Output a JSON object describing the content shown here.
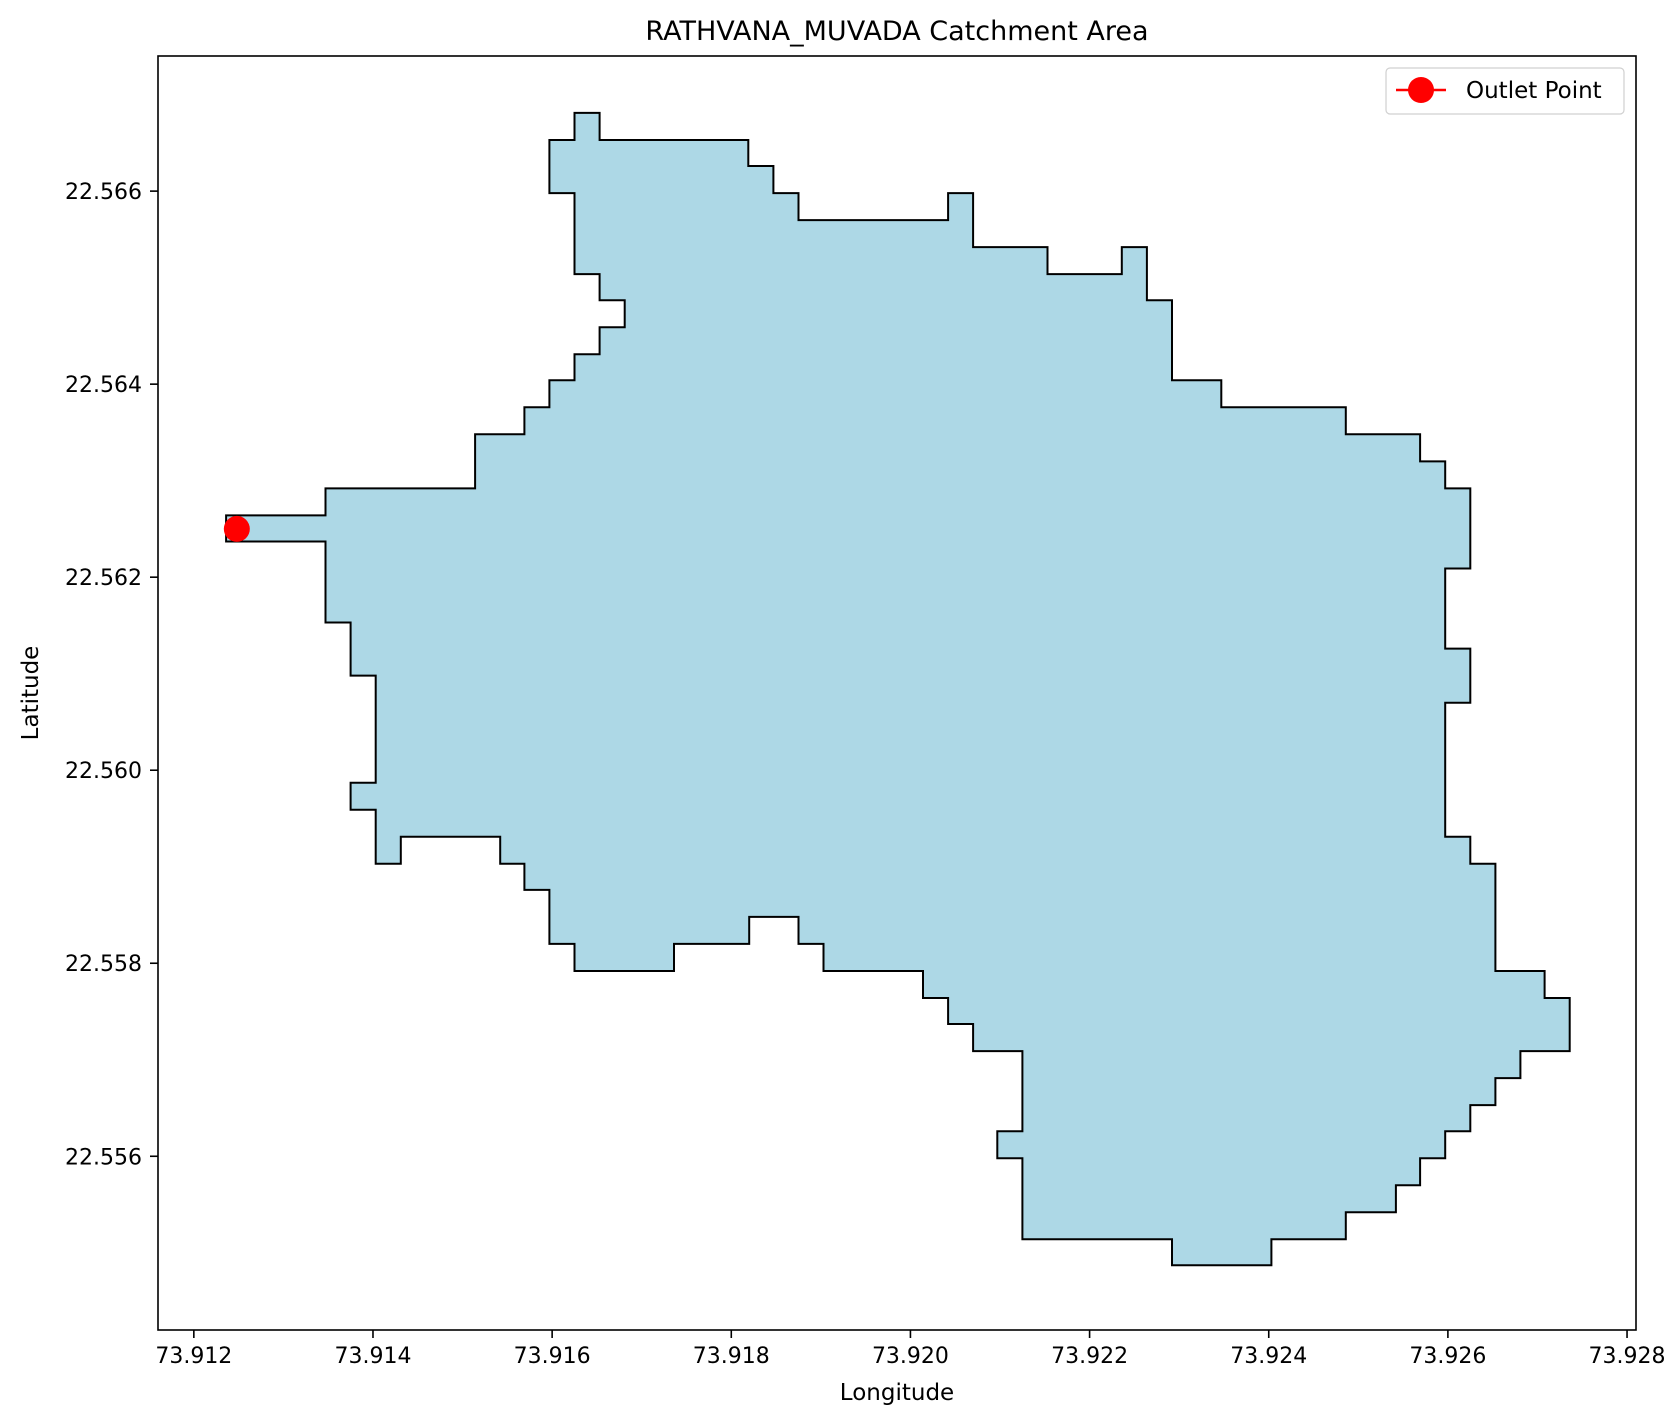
{
  "chart_data": {
    "type": "map",
    "title": "RATHVANA_MUVADA Catchment Area",
    "xlabel": "Longitude",
    "ylabel": "Latitude",
    "xlim": [
      73.9116,
      73.9281
    ],
    "ylim": [
      22.5542,
      22.5674
    ],
    "xticks": [
      "73.912",
      "73.914",
      "73.916",
      "73.918",
      "73.920",
      "73.922",
      "73.924",
      "73.926",
      "73.928"
    ],
    "yticks": [
      "22.556",
      "22.558",
      "22.560",
      "22.562",
      "22.564",
      "22.566"
    ],
    "polygon_fill": "#add8e6",
    "polygon_edge": "#000000",
    "catchment_boundary": [
      [
        73.91236,
        22.56264
      ],
      [
        73.91347,
        22.56264
      ],
      [
        73.91347,
        22.56292
      ],
      [
        73.91514,
        22.56292
      ],
      [
        73.91514,
        22.56348
      ],
      [
        73.91569,
        22.56348
      ],
      [
        73.91569,
        22.56376
      ],
      [
        73.91597,
        22.56376
      ],
      [
        73.91597,
        22.56404
      ],
      [
        73.91625,
        22.56404
      ],
      [
        73.91625,
        22.56431
      ],
      [
        73.91653,
        22.56431
      ],
      [
        73.91653,
        22.56459
      ],
      [
        73.91681,
        22.56459
      ],
      [
        73.91681,
        22.56487
      ],
      [
        73.91653,
        22.56487
      ],
      [
        73.91653,
        22.56514
      ],
      [
        73.91625,
        22.56514
      ],
      [
        73.91625,
        22.56598
      ],
      [
        73.91597,
        22.56598
      ],
      [
        73.91597,
        22.56653
      ],
      [
        73.91625,
        22.56653
      ],
      [
        73.91625,
        22.56681
      ],
      [
        73.91653,
        22.56681
      ],
      [
        73.91653,
        22.56653
      ],
      [
        73.91819,
        22.56653
      ],
      [
        73.91819,
        22.56626
      ],
      [
        73.91847,
        22.56626
      ],
      [
        73.91847,
        22.56598
      ],
      [
        73.91875,
        22.56598
      ],
      [
        73.91875,
        22.5657
      ],
      [
        73.92042,
        22.5657
      ],
      [
        73.92042,
        22.56598
      ],
      [
        73.9207,
        22.56598
      ],
      [
        73.9207,
        22.56542
      ],
      [
        73.92153,
        22.56542
      ],
      [
        73.92153,
        22.56514
      ],
      [
        73.92236,
        22.56514
      ],
      [
        73.92236,
        22.56542
      ],
      [
        73.92264,
        22.56542
      ],
      [
        73.92264,
        22.56487
      ],
      [
        73.92292,
        22.56487
      ],
      [
        73.92292,
        22.56404
      ],
      [
        73.92347,
        22.56404
      ],
      [
        73.92347,
        22.56376
      ],
      [
        73.92486,
        22.56376
      ],
      [
        73.92486,
        22.56348
      ],
      [
        73.92569,
        22.56348
      ],
      [
        73.92569,
        22.5632
      ],
      [
        73.92597,
        22.5632
      ],
      [
        73.92597,
        22.56292
      ],
      [
        73.92625,
        22.56292
      ],
      [
        73.92625,
        22.56209
      ],
      [
        73.92597,
        22.56209
      ],
      [
        73.92597,
        22.56126
      ],
      [
        73.92625,
        22.56126
      ],
      [
        73.92625,
        22.5607
      ],
      [
        73.92597,
        22.5607
      ],
      [
        73.92597,
        22.55931
      ],
      [
        73.92625,
        22.55931
      ],
      [
        73.92625,
        22.55903
      ],
      [
        73.92653,
        22.55903
      ],
      [
        73.92653,
        22.55792
      ],
      [
        73.92708,
        22.55792
      ],
      [
        73.92708,
        22.55764
      ],
      [
        73.92736,
        22.55764
      ],
      [
        73.92736,
        22.55709
      ],
      [
        73.92681,
        22.55709
      ],
      [
        73.92681,
        22.55681
      ],
      [
        73.92653,
        22.55681
      ],
      [
        73.92653,
        22.55653
      ],
      [
        73.92625,
        22.55653
      ],
      [
        73.92625,
        22.55626
      ],
      [
        73.92597,
        22.55626
      ],
      [
        73.92597,
        22.55598
      ],
      [
        73.92569,
        22.55598
      ],
      [
        73.92569,
        22.5557
      ],
      [
        73.92542,
        22.5557
      ],
      [
        73.92542,
        22.55542
      ],
      [
        73.92486,
        22.55542
      ],
      [
        73.92486,
        22.55514
      ],
      [
        73.92403,
        22.55514
      ],
      [
        73.92403,
        22.55487
      ],
      [
        73.92292,
        22.55487
      ],
      [
        73.92292,
        22.55514
      ],
      [
        73.92125,
        22.55514
      ],
      [
        73.92125,
        22.55598
      ],
      [
        73.92097,
        22.55598
      ],
      [
        73.92097,
        22.55626
      ],
      [
        73.92125,
        22.55626
      ],
      [
        73.92125,
        22.55709
      ],
      [
        73.9207,
        22.55709
      ],
      [
        73.9207,
        22.55737
      ],
      [
        73.92042,
        22.55737
      ],
      [
        73.92042,
        22.55764
      ],
      [
        73.92014,
        22.55764
      ],
      [
        73.92014,
        22.55792
      ],
      [
        73.91903,
        22.55792
      ],
      [
        73.91903,
        22.5582
      ],
      [
        73.91875,
        22.5582
      ],
      [
        73.91875,
        22.55848
      ],
      [
        73.9182,
        22.55848
      ],
      [
        73.9182,
        22.5582
      ],
      [
        73.91736,
        22.5582
      ],
      [
        73.91736,
        22.55792
      ],
      [
        73.91625,
        22.55792
      ],
      [
        73.91625,
        22.5582
      ],
      [
        73.91597,
        22.5582
      ],
      [
        73.91597,
        22.55876
      ],
      [
        73.91569,
        22.55876
      ],
      [
        73.91569,
        22.55903
      ],
      [
        73.91542,
        22.55903
      ],
      [
        73.91542,
        22.55931
      ],
      [
        73.91431,
        22.55931
      ],
      [
        73.91431,
        22.55903
      ],
      [
        73.91403,
        22.55903
      ],
      [
        73.91403,
        22.55959
      ],
      [
        73.91375,
        22.55959
      ],
      [
        73.91375,
        22.55987
      ],
      [
        73.91403,
        22.55987
      ],
      [
        73.91403,
        22.56098
      ],
      [
        73.91375,
        22.56098
      ],
      [
        73.91375,
        22.56153
      ],
      [
        73.91347,
        22.56153
      ],
      [
        73.91347,
        22.56237
      ],
      [
        73.91236,
        22.56237
      ]
    ],
    "series": [
      {
        "name": "Outlet Point",
        "x": [
          73.91248
        ],
        "y": [
          22.5625
        ],
        "color": "#ff0000",
        "marker": "circle"
      }
    ],
    "legend": "top-right",
    "grid": false
  }
}
